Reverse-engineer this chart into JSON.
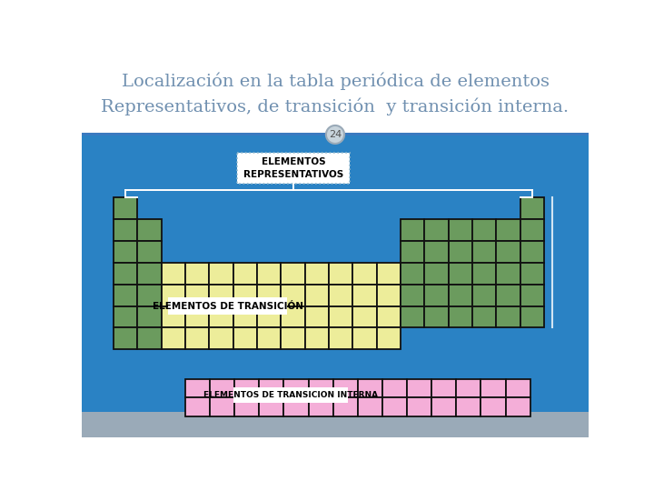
{
  "title_line1": "Localización en la tabla periódica de elementos",
  "title_line2": "Representativos, de transición  y transición interna.",
  "slide_number": "24",
  "bg_color": "#2A82C4",
  "title_bg": "#FFFFFF",
  "green_color": "#6B9B5E",
  "yellow_color": "#EDED9A",
  "pink_color": "#F4AED8",
  "cell_border": "#111111",
  "white": "#FFFFFF",
  "label_repr": "ELEMENTOS\nREPRESENTATIVOS",
  "label_trans": "ELEMENTOS DE TRANSICIÓN",
  "label_intern": "ELEMENTOS DE TRANSICION INTERNA",
  "title_color": "#7090B0",
  "bottom_bar_color": "#9AAAB8",
  "bracket_color": "#FFFFFF",
  "title_border_color": "#AABCCC"
}
